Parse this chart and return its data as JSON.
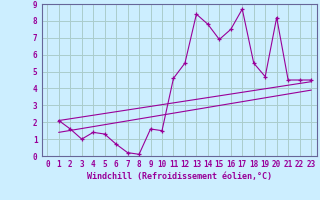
{
  "xlabel": "Windchill (Refroidissement éolien,°C)",
  "ylabel": "",
  "bg_color": "#cceeff",
  "grid_color": "#aacccc",
  "line_color": "#990099",
  "xlim": [
    -0.5,
    23.5
  ],
  "ylim": [
    0,
    9
  ],
  "xticks": [
    0,
    1,
    2,
    3,
    4,
    5,
    6,
    7,
    8,
    9,
    10,
    11,
    12,
    13,
    14,
    15,
    16,
    17,
    18,
    19,
    20,
    21,
    22,
    23
  ],
  "yticks": [
    0,
    1,
    2,
    3,
    4,
    5,
    6,
    7,
    8,
    9
  ],
  "series1_x": [
    1,
    2,
    3,
    4,
    5,
    6,
    7,
    8,
    9,
    10,
    11,
    12,
    13,
    14,
    15,
    16,
    17,
    18,
    19,
    20,
    21,
    22,
    23
  ],
  "series1_y": [
    2.1,
    1.6,
    1.0,
    1.4,
    1.3,
    0.7,
    0.2,
    0.1,
    1.6,
    1.5,
    4.6,
    5.5,
    8.4,
    7.8,
    6.9,
    7.5,
    8.7,
    5.5,
    4.7,
    8.2,
    4.5,
    4.5,
    4.5
  ],
  "series2_x": [
    1,
    23
  ],
  "series2_y": [
    2.1,
    4.4
  ],
  "series3_x": [
    1,
    23
  ],
  "series3_y": [
    1.4,
    3.9
  ],
  "tick_fontsize": 5.5,
  "xlabel_fontsize": 6.0
}
